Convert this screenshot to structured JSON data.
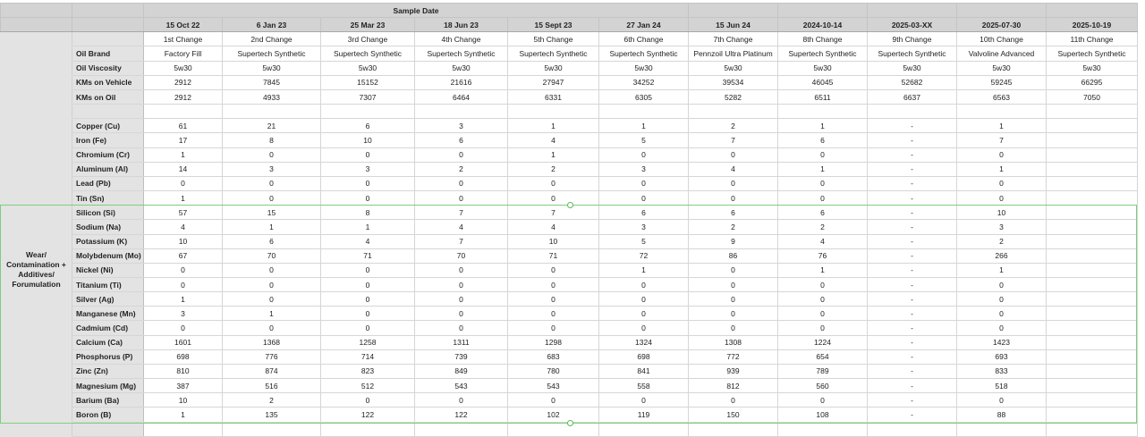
{
  "header": {
    "group_label": "Sample Date"
  },
  "row_labels": {
    "brand": "Oil Brand",
    "viscosity": "Oil Viscosity",
    "kms_vehicle": "KMs on Vehicle",
    "kms_oil": "KMs on Oil"
  },
  "section_label": "Wear/ Contamination + Additives/ Forumulation",
  "columns": [
    {
      "date": "15 Oct 22",
      "change": "1st Change",
      "brand": "Factory Fill",
      "viscosity": "5w30",
      "kms_vehicle": "2912",
      "kms_oil": "2912"
    },
    {
      "date": "6 Jan 23",
      "change": "2nd Change",
      "brand": "Supertech Synthetic",
      "viscosity": "5w30",
      "kms_vehicle": "7845",
      "kms_oil": "4933"
    },
    {
      "date": "25 Mar 23",
      "change": "3rd Change",
      "brand": "Supertech Synthetic",
      "viscosity": "5w30",
      "kms_vehicle": "15152",
      "kms_oil": "7307"
    },
    {
      "date": "18 Jun 23",
      "change": "4th Change",
      "brand": "Supertech Synthetic",
      "viscosity": "5w30",
      "kms_vehicle": "21616",
      "kms_oil": "6464"
    },
    {
      "date": "15 Sept 23",
      "change": "5th Change",
      "brand": "Supertech Synthetic",
      "viscosity": "5w30",
      "kms_vehicle": "27947",
      "kms_oil": "6331"
    },
    {
      "date": "27 Jan 24",
      "change": "6th Change",
      "brand": "Supertech Synthetic",
      "viscosity": "5w30",
      "kms_vehicle": "34252",
      "kms_oil": "6305"
    },
    {
      "date": "15 Jun 24",
      "change": "7th Change",
      "brand": "Pennzoil Ultra Platinum",
      "viscosity": "5w30",
      "kms_vehicle": "39534",
      "kms_oil": "5282"
    },
    {
      "date": "2024-10-14",
      "change": "8th Change",
      "brand": "Supertech Synthetic",
      "viscosity": "5w30",
      "kms_vehicle": "46045",
      "kms_oil": "6511"
    },
    {
      "date": "2025-03-XX",
      "change": "9th Change",
      "brand": "Supertech Synthetic",
      "viscosity": "5w30",
      "kms_vehicle": "52682",
      "kms_oil": "6637"
    },
    {
      "date": "2025-07-30",
      "change": "10th Change",
      "brand": "Valvoline Advanced",
      "viscosity": "5w30",
      "kms_vehicle": "59245",
      "kms_oil": "6563"
    },
    {
      "date": "2025-10-19",
      "change": "11th Change",
      "brand": "Supertech Synthetic",
      "viscosity": "5w30",
      "kms_vehicle": "66295",
      "kms_oil": "7050"
    }
  ],
  "elements": [
    {
      "name": "Copper (Cu)",
      "values": [
        "61",
        "21",
        "6",
        "3",
        "1",
        "1",
        "2",
        "1",
        "-",
        "1",
        ""
      ]
    },
    {
      "name": "Iron (Fe)",
      "values": [
        "17",
        "8",
        "10",
        "6",
        "4",
        "5",
        "7",
        "6",
        "-",
        "7",
        ""
      ]
    },
    {
      "name": "Chromium (Cr)",
      "values": [
        "1",
        "0",
        "0",
        "0",
        "1",
        "0",
        "0",
        "0",
        "-",
        "0",
        ""
      ]
    },
    {
      "name": "Aluminum (Al)",
      "values": [
        "14",
        "3",
        "3",
        "2",
        "2",
        "3",
        "4",
        "1",
        "-",
        "1",
        ""
      ]
    },
    {
      "name": "Lead (Pb)",
      "values": [
        "0",
        "0",
        "0",
        "0",
        "0",
        "0",
        "0",
        "0",
        "-",
        "0",
        ""
      ]
    },
    {
      "name": "Tin (Sn)",
      "values": [
        "1",
        "0",
        "0",
        "0",
        "0",
        "0",
        "0",
        "0",
        "-",
        "0",
        ""
      ]
    },
    {
      "name": "Silicon (Si)",
      "values": [
        "57",
        "15",
        "8",
        "7",
        "7",
        "6",
        "6",
        "6",
        "-",
        "10",
        ""
      ]
    },
    {
      "name": "Sodium (Na)",
      "values": [
        "4",
        "1",
        "1",
        "4",
        "4",
        "3",
        "2",
        "2",
        "-",
        "3",
        ""
      ]
    },
    {
      "name": "Potassium (K)",
      "values": [
        "10",
        "6",
        "4",
        "7",
        "10",
        "5",
        "9",
        "4",
        "-",
        "2",
        ""
      ]
    },
    {
      "name": "Molybdenum (Mo)",
      "values": [
        "67",
        "70",
        "71",
        "70",
        "71",
        "72",
        "86",
        "76",
        "-",
        "266",
        ""
      ]
    },
    {
      "name": "Nickel (Ni)",
      "values": [
        "0",
        "0",
        "0",
        "0",
        "0",
        "1",
        "0",
        "1",
        "-",
        "1",
        ""
      ]
    },
    {
      "name": "Titanium (Ti)",
      "values": [
        "0",
        "0",
        "0",
        "0",
        "0",
        "0",
        "0",
        "0",
        "-",
        "0",
        ""
      ]
    },
    {
      "name": "Silver (Ag)",
      "values": [
        "1",
        "0",
        "0",
        "0",
        "0",
        "0",
        "0",
        "0",
        "-",
        "0",
        ""
      ]
    },
    {
      "name": "Manganese (Mn)",
      "values": [
        "3",
        "1",
        "0",
        "0",
        "0",
        "0",
        "0",
        "0",
        "-",
        "0",
        ""
      ]
    },
    {
      "name": "Cadmium (Cd)",
      "values": [
        "0",
        "0",
        "0",
        "0",
        "0",
        "0",
        "0",
        "0",
        "-",
        "0",
        ""
      ]
    },
    {
      "name": "Calcium (Ca)",
      "values": [
        "1601",
        "1368",
        "1258",
        "1311",
        "1298",
        "1324",
        "1308",
        "1224",
        "-",
        "1423",
        ""
      ]
    },
    {
      "name": "Phosphorus (P)",
      "values": [
        "698",
        "776",
        "714",
        "739",
        "683",
        "698",
        "772",
        "654",
        "-",
        "693",
        ""
      ]
    },
    {
      "name": "Zinc (Zn)",
      "values": [
        "810",
        "874",
        "823",
        "849",
        "780",
        "841",
        "939",
        "789",
        "-",
        "833",
        ""
      ]
    },
    {
      "name": "Magnesium (Mg)",
      "values": [
        "387",
        "516",
        "512",
        "543",
        "543",
        "558",
        "812",
        "560",
        "-",
        "518",
        ""
      ]
    },
    {
      "name": "Barium (Ba)",
      "values": [
        "10",
        "2",
        "0",
        "0",
        "0",
        "0",
        "0",
        "0",
        "-",
        "0",
        ""
      ]
    },
    {
      "name": "Boron (B)",
      "values": [
        "1",
        "135",
        "122",
        "122",
        "102",
        "119",
        "150",
        "108",
        "-",
        "88",
        ""
      ]
    }
  ],
  "selection_color": "#7ccf7c"
}
